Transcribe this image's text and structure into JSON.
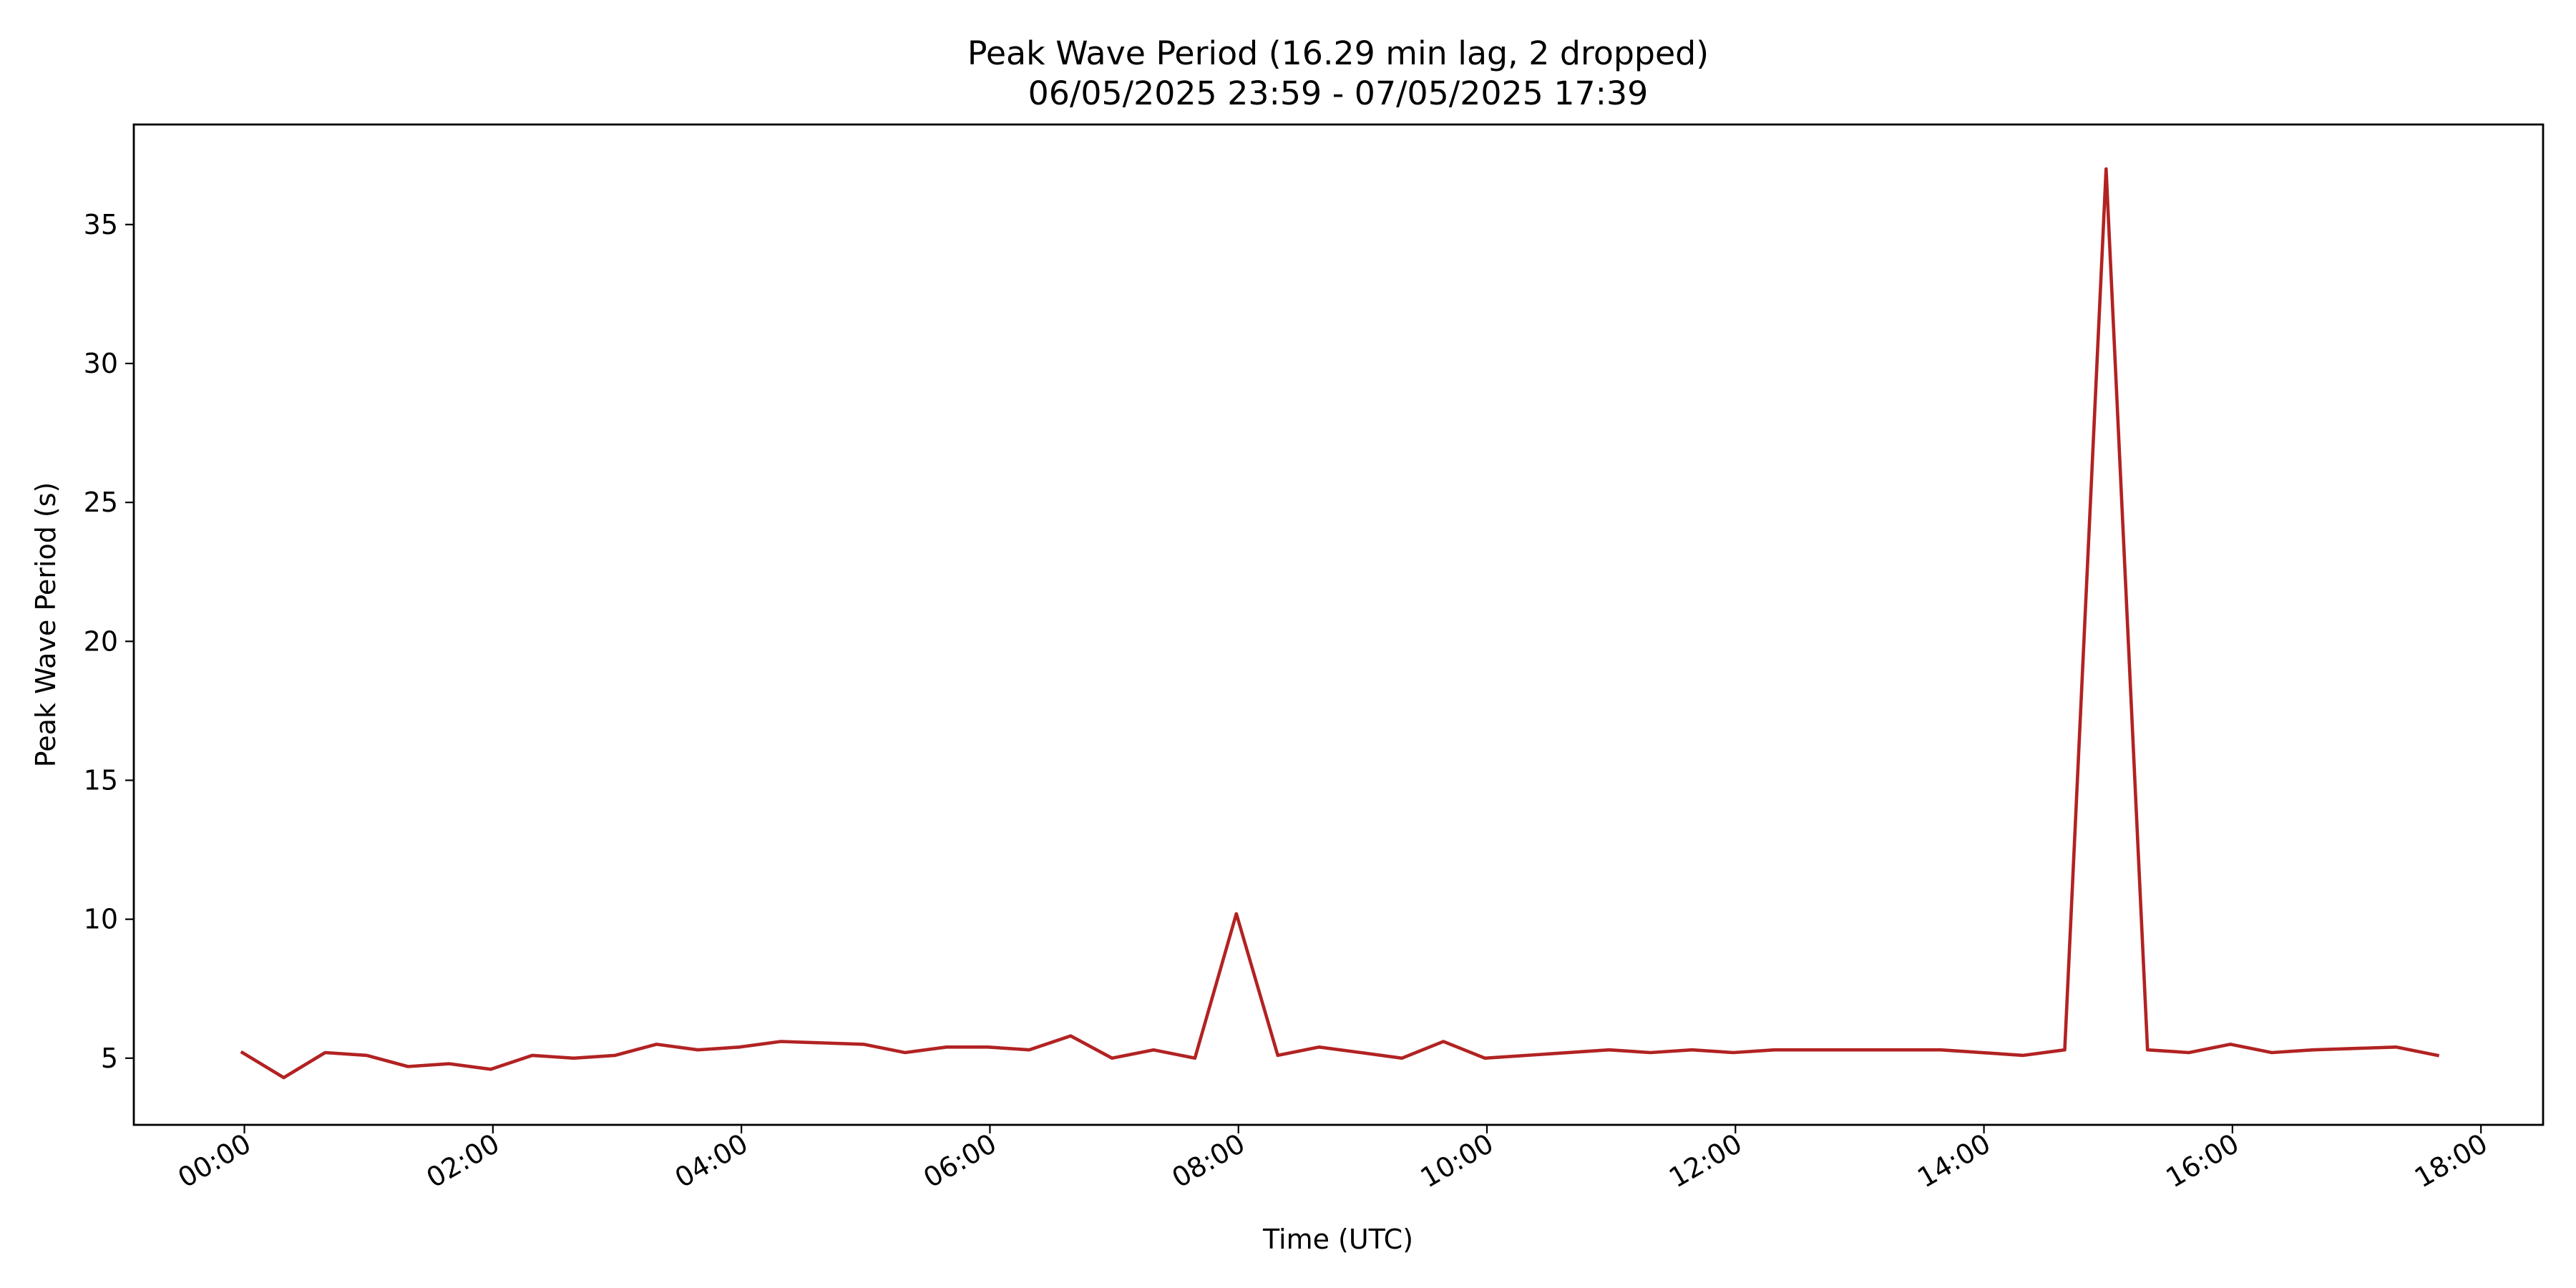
{
  "chart_data": {
    "type": "line",
    "title": "Peak Wave Period (16.29 min lag, 2 dropped)",
    "subtitle": "06/05/2025 23:59 - 07/05/2025 17:39",
    "xlabel": "Time (UTC)",
    "ylabel": "Peak Wave Period (s)",
    "grid": false,
    "line_color": "#b22222",
    "xlim_hours": [
      -0.89,
      18.5
    ],
    "ylim": [
      2.6,
      38.6
    ],
    "x_ticks": [
      {
        "label": "00:00",
        "value": 0
      },
      {
        "label": "02:00",
        "value": 2
      },
      {
        "label": "04:00",
        "value": 4
      },
      {
        "label": "06:00",
        "value": 6
      },
      {
        "label": "08:00",
        "value": 8
      },
      {
        "label": "10:00",
        "value": 10
      },
      {
        "label": "12:00",
        "value": 12
      },
      {
        "label": "14:00",
        "value": 14
      },
      {
        "label": "16:00",
        "value": 16
      },
      {
        "label": "18:00",
        "value": 18
      }
    ],
    "y_ticks": [
      {
        "label": "5",
        "value": 5
      },
      {
        "label": "10",
        "value": 10
      },
      {
        "label": "15",
        "value": 15
      },
      {
        "label": "20",
        "value": 20
      },
      {
        "label": "25",
        "value": 25
      },
      {
        "label": "30",
        "value": 30
      },
      {
        "label": "35",
        "value": 35
      }
    ],
    "series": [
      {
        "x": [
          "23:59",
          "00:19",
          "00:39",
          "00:59",
          "01:19",
          "01:39",
          "01:59",
          "02:19",
          "02:39",
          "02:59",
          "03:19",
          "03:39",
          "03:59",
          "04:19",
          "04:59",
          "05:19",
          "05:39",
          "05:59",
          "06:19",
          "06:39",
          "06:59",
          "07:19",
          "07:39",
          "07:59",
          "08:19",
          "08:39",
          "08:59",
          "09:19",
          "09:39",
          "09:59",
          "10:59",
          "11:19",
          "11:39",
          "11:59",
          "12:19",
          "13:39",
          "14:19",
          "14:39",
          "14:59",
          "15:19",
          "15:39",
          "15:59",
          "16:19",
          "16:39",
          "17:19",
          "17:39"
        ],
        "values": [
          5.2,
          4.3,
          5.2,
          5.1,
          4.7,
          4.8,
          4.6,
          5.1,
          5.0,
          5.1,
          5.5,
          5.3,
          5.4,
          5.6,
          5.5,
          5.2,
          5.4,
          5.4,
          5.3,
          5.8,
          5.0,
          5.3,
          5.0,
          10.2,
          5.1,
          5.4,
          5.2,
          5.0,
          5.6,
          5.0,
          5.3,
          5.2,
          5.3,
          5.2,
          5.3,
          5.3,
          5.1,
          5.3,
          37.0,
          5.3,
          5.2,
          5.5,
          5.2,
          5.3,
          5.4,
          5.1
        ]
      }
    ]
  }
}
